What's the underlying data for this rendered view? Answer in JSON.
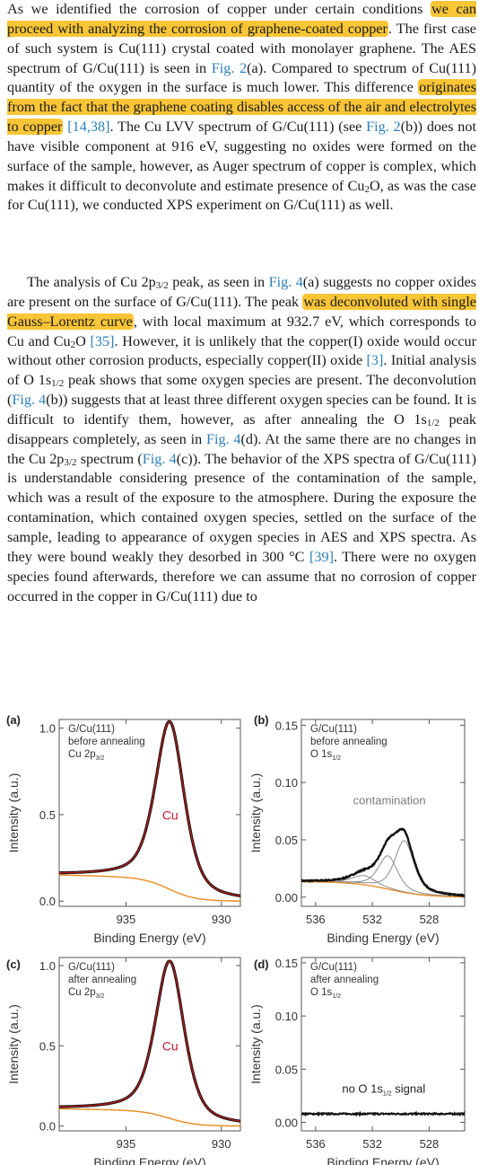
{
  "article": {
    "p1": [
      {
        "t": "As we identified the corrosion of copper under certain conditions "
      },
      {
        "t": "we can proceed with analyzing the corrosion of graphene-coated copper",
        "s": "hl"
      },
      {
        "t": ". The first case of such system is Cu(111) crystal coated with monolayer graphene. The AES spectrum of G/Cu(111) is seen in "
      },
      {
        "t": "Fig. 2",
        "s": "lnk"
      },
      {
        "t": "(a). Compared to spectrum of Cu(111) quantity of the oxygen in the surface is much lower. This difference "
      },
      {
        "t": "originates from the fact that the graphene coating disables access of the air and electrolytes to copper",
        "s": "hl"
      },
      {
        "t": " "
      },
      {
        "t": "[14,38]",
        "s": "lnk"
      },
      {
        "t": ". The Cu LVV spectrum of G/Cu(111) (see "
      },
      {
        "t": "Fig. 2",
        "s": "lnk"
      },
      {
        "t": "(b)) does not have visible component at 916 eV, suggesting no oxides were formed on the surface of the sample, however, as Auger spectrum of copper is complex, which makes it difficult to deconvolute and estimate presence of Cu"
      },
      {
        "t": "2",
        "s": "sub"
      },
      {
        "t": "O, as was the case for Cu(111), we conducted XPS experiment on G/Cu(111) as well."
      }
    ],
    "p2": [
      {
        "t": "The analysis of Cu 2p"
      },
      {
        "t": "3/2",
        "s": "sub"
      },
      {
        "t": " peak, as seen in "
      },
      {
        "t": "Fig. 4",
        "s": "lnk"
      },
      {
        "t": "(a) suggests no copper oxides are present on the surface of G/Cu(111). The peak "
      },
      {
        "t": "was deconvoluted with single Gauss–Lorentz curve",
        "s": "hl"
      },
      {
        "t": ", with local maximum at 932.7 eV, which corresponds to Cu and Cu"
      },
      {
        "t": "2",
        "s": "sub"
      },
      {
        "t": "O "
      },
      {
        "t": "[35]",
        "s": "lnk"
      },
      {
        "t": ". However, it is unlikely that the copper(I) oxide would occur without other corrosion products, especially copper(II) oxide "
      },
      {
        "t": "[3]",
        "s": "lnk"
      },
      {
        "t": ". Initial analysis of O 1s"
      },
      {
        "t": "1/2",
        "s": "sub"
      },
      {
        "t": " peak shows that some oxygen species are present. The deconvolution ("
      },
      {
        "t": "Fig. 4",
        "s": "lnk"
      },
      {
        "t": "(b)) suggests that at least three different oxygen species can be found. It is difficult to identify them, however, as after annealing the O 1s"
      },
      {
        "t": "1/2",
        "s": "sub"
      },
      {
        "t": " peak disappears completely, as seen in "
      },
      {
        "t": "Fig. 4",
        "s": "lnk"
      },
      {
        "t": "(d). At the same there are no changes in the Cu 2p"
      },
      {
        "t": "3/2",
        "s": "sub"
      },
      {
        "t": " spectrum ("
      },
      {
        "t": "Fig. 4",
        "s": "lnk"
      },
      {
        "t": "(c)). The behavior of the XPS spectra of G/Cu(111) is understandable considering presence of the contamination of the sample, which was a result of the exposure to the atmosphere. During the exposure the contamination, which contained oxygen species, settled on the surface of the sample, leading to appearance of oxygen species in AES and XPS spectra. As they were bound weakly they desorbed in 300 °C "
      },
      {
        "t": "[39]",
        "s": "lnk"
      },
      {
        "t": ". There were no oxygen species found afterwards, therefore we can assume that no corrosion of copper occurred in the copper in G/Cu(111) due to"
      }
    ]
  },
  "colors": {
    "highlight": "#f8c537",
    "link": "#2b7fb8",
    "measured": "#111111",
    "envelope": "#b01c1c",
    "background_line": "#e8891e",
    "component": "#8c8c8c",
    "peak_label": "#c0192b",
    "annotation": "#7a7a7a"
  },
  "chart_data": [
    {
      "panel": "(a)",
      "type": "line",
      "legend": [
        "G/Cu(111)",
        "before annealing",
        "Cu 2p",
        "3/2"
      ],
      "xlabel": "Binding Energy (eV)",
      "ylabel": "Intensity (a.u.)",
      "xlim": [
        938.5,
        929
      ],
      "x_reversed": true,
      "ylim": [
        -0.03,
        1.05
      ],
      "xticks": [
        935,
        930
      ],
      "xtick_labels": [
        "935",
        "930"
      ],
      "yticks": [
        0.0,
        0.5,
        1.0
      ],
      "ytick_labels": [
        "0.0",
        "0.5",
        "1.0"
      ],
      "peak_label": "Cu",
      "peak_label_pos": [
        933.1,
        0.47
      ],
      "peak": {
        "center": 932.7,
        "height": 0.97,
        "width": 0.9
      },
      "background": {
        "high": 0.135,
        "low": 0.0,
        "step_center": 932.7,
        "step_width": 0.7,
        "slope": 0.0028
      },
      "components": []
    },
    {
      "panel": "(b)",
      "type": "line",
      "legend": [
        "G/Cu(111)",
        "before annealing",
        "O 1s",
        "1/2"
      ],
      "xlabel": "Binding Energy (eV)",
      "ylabel": "Intensity (a.u.)",
      "xlim": [
        537.0,
        525.5
      ],
      "x_reversed": true,
      "ylim": [
        -0.008,
        0.155
      ],
      "xticks": [
        536,
        532,
        528
      ],
      "xtick_labels": [
        "536",
        "532",
        "528"
      ],
      "yticks": [
        0.0,
        0.05,
        0.1,
        0.15
      ],
      "ytick_labels": [
        "0.00",
        "0.05",
        "0.10",
        "0.15"
      ],
      "annotation": "contamination",
      "annotation_pos": [
        530.8,
        0.081
      ],
      "background": {
        "high": 0.0135,
        "low": 0.0,
        "step_center": 530.8,
        "step_width": 1.3,
        "slope": 0.0
      },
      "components": [
        {
          "center": 532.6,
          "height": 0.008,
          "width": 1.0
        },
        {
          "center": 530.9,
          "height": 0.029,
          "width": 0.8
        },
        {
          "center": 529.75,
          "height": 0.045,
          "width": 0.8
        }
      ],
      "noise": 0.0009
    },
    {
      "panel": "(c)",
      "type": "line",
      "legend": [
        "G/Cu(111)",
        "after annealing",
        "Cu 2p",
        "3/2"
      ],
      "xlabel": "Binding Energy (eV)",
      "ylabel": "Intensity (a.u.)",
      "xlim": [
        938.5,
        929
      ],
      "x_reversed": true,
      "ylim": [
        -0.03,
        1.05
      ],
      "xticks": [
        935,
        930
      ],
      "xtick_labels": [
        "935",
        "930"
      ],
      "yticks": [
        0.0,
        0.5,
        1.0
      ],
      "ytick_labels": [
        "0.0",
        "0.5",
        "1.0"
      ],
      "peak_label": "Cu",
      "peak_label_pos": [
        933.1,
        0.47
      ],
      "peak": {
        "center": 932.7,
        "height": 0.98,
        "width": 0.9
      },
      "background": {
        "high": 0.095,
        "low": 0.0,
        "step_center": 932.7,
        "step_width": 0.7,
        "slope": 0.0022
      },
      "components": []
    },
    {
      "panel": "(d)",
      "type": "line",
      "legend": [
        "G/Cu(111)",
        "after annealing",
        "O 1s",
        "1/2"
      ],
      "xlabel": "Binding Energy (eV)",
      "ylabel": "Intensity (a.u.)",
      "xlim": [
        537.0,
        525.5
      ],
      "x_reversed": true,
      "ylim": [
        -0.008,
        0.155
      ],
      "xticks": [
        536,
        532,
        528
      ],
      "xtick_labels": [
        "536",
        "532",
        "528"
      ],
      "yticks": [
        0.0,
        0.05,
        0.1,
        0.15
      ],
      "ytick_labels": [
        "0.00",
        "0.05",
        "0.10",
        "0.15"
      ],
      "annotation_parts": [
        "no O 1s",
        "1/2",
        " signal"
      ],
      "annotation_pos": [
        531.2,
        0.028
      ],
      "flat_level": 0.008,
      "noise": 0.0007
    }
  ]
}
